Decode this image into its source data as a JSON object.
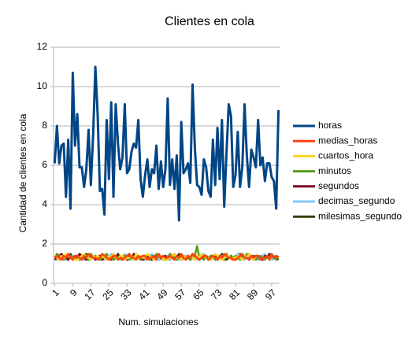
{
  "chart_data": {
    "type": "line",
    "title": "Clientes en cola",
    "xlabel": "Num. simulaciones",
    "ylabel": "Cantidad de clientes en cola",
    "x": [
      1,
      2,
      3,
      4,
      5,
      6,
      7,
      8,
      9,
      10,
      11,
      12,
      13,
      14,
      15,
      16,
      17,
      18,
      19,
      20,
      21,
      22,
      23,
      24,
      25,
      26,
      27,
      28,
      29,
      30,
      31,
      32,
      33,
      34,
      35,
      36,
      37,
      38,
      39,
      40,
      41,
      42,
      43,
      44,
      45,
      46,
      47,
      48,
      49,
      50,
      51,
      52,
      53,
      54,
      55,
      56,
      57,
      58,
      59,
      60,
      61,
      62,
      63,
      64,
      65,
      66,
      67,
      68,
      69,
      70,
      71,
      72,
      73,
      74,
      75,
      76,
      77,
      78,
      79,
      80,
      81,
      82,
      83,
      84,
      85,
      86,
      87,
      88,
      89,
      90,
      91,
      92,
      93,
      94,
      95,
      96,
      97,
      98,
      99,
      100
    ],
    "xlim": [
      0.5,
      100.5
    ],
    "xticks": [
      1,
      9,
      17,
      25,
      33,
      41,
      49,
      57,
      65,
      73,
      81,
      89,
      97
    ],
    "ylim": [
      0,
      12
    ],
    "yticks": [
      0,
      2,
      4,
      6,
      8,
      10,
      12
    ],
    "grid": true,
    "legend": "right",
    "series": [
      {
        "name": "horas",
        "color": "#004586",
        "values": [
          6.1,
          8.0,
          6.1,
          7.0,
          7.1,
          4.4,
          7.3,
          3.8,
          10.7,
          7.0,
          8.6,
          5.9,
          5.9,
          4.9,
          5.8,
          7.8,
          5.0,
          7.5,
          11.0,
          8.6,
          4.7,
          4.8,
          3.5,
          8.3,
          5.3,
          9.2,
          4.4,
          9.1,
          7.1,
          5.8,
          6.4,
          9.1,
          5.6,
          5.8,
          6.7,
          7.1,
          6.9,
          8.3,
          5.3,
          4.4,
          5.5,
          6.3,
          4.9,
          5.8,
          5.6,
          7.0,
          4.8,
          6.2,
          4.9,
          5.8,
          9.4,
          5.0,
          6.3,
          4.8,
          6.5,
          3.2,
          8.2,
          5.6,
          5.8,
          6.1,
          5.1,
          10.1,
          6.9,
          5.0,
          4.9,
          4.5,
          6.3,
          5.9,
          4.7,
          4.4,
          7.3,
          5.0,
          7.9,
          5.3,
          8.3,
          3.9,
          6.6,
          9.1,
          8.5,
          4.9,
          5.5,
          7.7,
          4.9,
          5.9,
          9.1,
          6.5,
          4.9,
          6.8,
          6.4,
          5.9,
          8.3,
          6.0,
          6.4,
          5.2,
          6.1,
          6.1,
          5.4,
          5.2,
          3.8,
          8.8
        ]
      },
      {
        "name": "medias_horas",
        "color": "#ff420e",
        "values": [
          1.3,
          1.4,
          1.3,
          1.2,
          1.4,
          1.3,
          1.5,
          1.3,
          1.2,
          1.4,
          1.4,
          1.3,
          1.2,
          1.4,
          1.3,
          1.5,
          1.4,
          1.3,
          1.3,
          1.2,
          1.3,
          1.5,
          1.4,
          1.3,
          1.2,
          1.3,
          1.4,
          1.4,
          1.2,
          1.3,
          1.2,
          1.3,
          1.4,
          1.5,
          1.3,
          1.3,
          1.2,
          1.4,
          1.3,
          1.4,
          1.4,
          1.2,
          1.3,
          1.3,
          1.4,
          1.2,
          1.5,
          1.3,
          1.4,
          1.3,
          1.3,
          1.4,
          1.3,
          1.2,
          1.4,
          1.3,
          1.5,
          1.3,
          1.2,
          1.4,
          1.3,
          1.5,
          1.4,
          1.3,
          1.2,
          1.3,
          1.4,
          1.4,
          1.2,
          1.3,
          1.4,
          1.3,
          1.2,
          1.4,
          1.3,
          1.5,
          1.4,
          1.3,
          1.3,
          1.2,
          1.2,
          1.3,
          1.4,
          1.5,
          1.3,
          1.3,
          1.2,
          1.4,
          1.3,
          1.4,
          1.4,
          1.2,
          1.3,
          1.3,
          1.4,
          1.2,
          1.5,
          1.3,
          1.4,
          1.3
        ]
      },
      {
        "name": "cuartos_hora",
        "color": "#ffd320",
        "values": [
          1.4,
          1.3,
          1.2,
          1.4,
          1.3,
          1.5,
          1.4,
          1.3,
          1.3,
          1.2,
          1.2,
          1.3,
          1.4,
          1.5,
          1.3,
          1.3,
          1.2,
          1.4,
          1.3,
          1.4,
          1.3,
          1.4,
          1.3,
          1.2,
          1.4,
          1.3,
          1.5,
          1.3,
          1.2,
          1.4,
          1.4,
          1.2,
          1.3,
          1.3,
          1.4,
          1.2,
          1.5,
          1.3,
          1.4,
          1.3,
          1.3,
          1.5,
          1.4,
          1.3,
          1.2,
          1.3,
          1.4,
          1.4,
          1.2,
          1.3,
          1.2,
          1.3,
          1.4,
          1.5,
          1.3,
          1.3,
          1.2,
          1.4,
          1.3,
          1.4,
          1.4,
          1.3,
          1.2,
          1.4,
          1.3,
          1.5,
          1.4,
          1.3,
          1.3,
          1.2,
          1.3,
          1.5,
          1.4,
          1.3,
          1.2,
          1.3,
          1.4,
          1.4,
          1.2,
          1.3,
          1.3,
          1.4,
          1.3,
          1.2,
          1.4,
          1.3,
          1.5,
          1.3,
          1.2,
          1.4,
          1.4,
          1.2,
          1.3,
          1.3,
          1.4,
          1.2,
          1.5,
          1.3,
          1.4,
          1.3
        ]
      },
      {
        "name": "minutos",
        "color": "#579d1c",
        "values": [
          1.3,
          1.5,
          1.4,
          1.3,
          1.2,
          1.3,
          1.4,
          1.4,
          1.2,
          1.3,
          1.4,
          1.2,
          1.3,
          1.3,
          1.4,
          1.2,
          1.5,
          1.3,
          1.4,
          1.3,
          1.2,
          1.3,
          1.4,
          1.5,
          1.3,
          1.3,
          1.2,
          1.4,
          1.3,
          1.4,
          1.3,
          1.4,
          1.3,
          1.2,
          1.4,
          1.3,
          1.5,
          1.3,
          1.2,
          1.4,
          1.4,
          1.3,
          1.2,
          1.4,
          1.3,
          1.5,
          1.4,
          1.3,
          1.3,
          1.2,
          1.3,
          1.5,
          1.4,
          1.3,
          1.2,
          1.3,
          1.4,
          1.4,
          1.2,
          1.3,
          1.2,
          1.3,
          1.4,
          1.9,
          1.3,
          1.3,
          1.2,
          1.4,
          1.3,
          1.4,
          1.4,
          1.2,
          1.3,
          1.3,
          1.4,
          1.2,
          1.5,
          1.3,
          1.4,
          1.3,
          1.4,
          1.3,
          1.2,
          1.4,
          1.3,
          1.5,
          1.4,
          1.3,
          1.3,
          1.2,
          1.3,
          1.4,
          1.3,
          1.2,
          1.4,
          1.3,
          1.5,
          1.3,
          1.2,
          1.4
        ]
      },
      {
        "name": "segundos",
        "color": "#7e0021",
        "values": [
          1.2,
          1.3,
          1.4,
          1.5,
          1.3,
          1.3,
          1.2,
          1.4,
          1.3,
          1.4,
          1.3,
          1.5,
          1.4,
          1.3,
          1.2,
          1.3,
          1.4,
          1.4,
          1.2,
          1.3,
          1.4,
          1.2,
          1.3,
          1.3,
          1.4,
          1.2,
          1.5,
          1.3,
          1.4,
          1.3,
          1.4,
          1.3,
          1.2,
          1.4,
          1.3,
          1.5,
          1.4,
          1.3,
          1.3,
          1.2,
          1.3,
          1.4,
          1.3,
          1.2,
          1.4,
          1.3,
          1.5,
          1.3,
          1.2,
          1.4,
          1.2,
          1.3,
          1.4,
          1.5,
          1.3,
          1.3,
          1.2,
          1.4,
          1.3,
          1.4,
          1.3,
          1.5,
          1.4,
          1.3,
          1.2,
          1.3,
          1.4,
          1.4,
          1.2,
          1.3,
          1.4,
          1.2,
          1.3,
          1.3,
          1.4,
          1.2,
          1.5,
          1.3,
          1.4,
          1.3,
          1.3,
          1.4,
          1.3,
          1.2,
          1.4,
          1.3,
          1.5,
          1.3,
          1.2,
          1.4,
          1.4,
          1.3,
          1.2,
          1.4,
          1.3,
          1.5,
          1.4,
          1.3,
          1.3,
          1.2
        ]
      },
      {
        "name": "decimas_segundo",
        "color": "#83caff",
        "values": [
          1.4,
          1.2,
          1.3,
          1.3,
          1.4,
          1.2,
          1.5,
          1.3,
          1.4,
          1.3,
          1.3,
          1.4,
          1.3,
          1.2,
          1.4,
          1.3,
          1.5,
          1.3,
          1.2,
          1.4,
          1.4,
          1.3,
          1.2,
          1.4,
          1.3,
          1.5,
          1.4,
          1.3,
          1.3,
          1.2,
          1.3,
          1.5,
          1.4,
          1.3,
          1.2,
          1.3,
          1.4,
          1.4,
          1.2,
          1.3,
          1.2,
          1.3,
          1.4,
          1.5,
          1.3,
          1.3,
          1.2,
          1.4,
          1.3,
          1.4,
          1.4,
          1.2,
          1.3,
          1.3,
          1.4,
          1.2,
          1.5,
          1.3,
          1.4,
          1.3,
          1.3,
          1.4,
          1.3,
          1.2,
          1.4,
          1.3,
          1.5,
          1.3,
          1.2,
          1.4,
          1.4,
          1.3,
          1.2,
          1.4,
          1.3,
          1.5,
          1.4,
          1.3,
          1.3,
          1.2,
          1.3,
          1.5,
          1.4,
          1.3,
          1.2,
          1.3,
          1.4,
          1.4,
          1.2,
          1.3,
          1.2,
          1.3,
          1.4,
          1.5,
          1.3,
          1.3,
          1.2,
          1.4,
          1.3,
          1.4
        ]
      },
      {
        "name": "milesimas_segundo",
        "color": "#314004",
        "values": [
          1.3,
          1.3,
          1.2,
          1.4,
          1.3,
          1.4,
          1.2,
          1.5,
          1.3,
          1.3,
          1.2,
          1.4,
          1.3,
          1.3,
          1.5,
          1.2,
          1.3,
          1.4,
          1.3,
          1.3,
          1.3,
          1.2,
          1.4,
          1.3,
          1.3,
          1.4,
          1.2,
          1.3,
          1.5,
          1.3,
          1.2,
          1.3,
          1.3,
          1.4,
          1.2,
          1.3,
          1.4,
          1.3,
          1.2,
          1.4,
          1.3,
          1.3,
          1.2,
          1.4,
          1.3,
          1.4,
          1.2,
          1.3,
          1.3,
          1.4,
          1.3,
          1.2,
          1.4,
          1.3,
          1.3,
          1.5,
          1.2,
          1.3,
          1.4,
          1.3,
          1.2,
          1.4,
          1.3,
          1.3,
          1.2,
          1.4,
          1.3,
          1.4,
          1.3,
          1.2,
          1.3,
          1.4,
          1.2,
          1.3,
          1.5,
          1.3,
          1.2,
          1.3,
          1.4,
          1.3,
          1.2,
          1.3,
          1.5,
          1.3,
          1.3,
          1.4,
          1.2,
          1.3,
          1.4,
          1.3,
          1.3,
          1.2,
          1.4,
          1.3,
          1.3,
          1.4,
          1.2,
          1.3,
          1.4,
          1.3
        ]
      }
    ]
  }
}
